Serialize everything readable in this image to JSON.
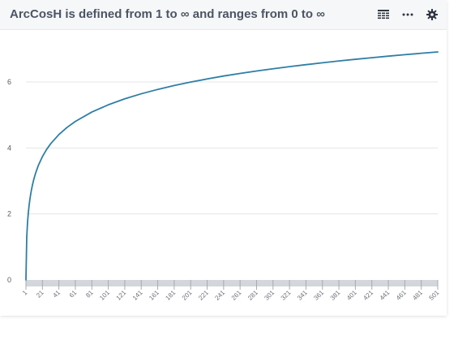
{
  "widget": {
    "title": "ArcCosH is defined from 1 to ∞ and ranges from 0 to ∞"
  },
  "toolbar": {
    "icons": [
      "table-icon",
      "more-icon",
      "gear-icon"
    ]
  },
  "colors": {
    "line": "#2f7ea5",
    "grid": "#e3e5e8",
    "axis_band": "#d3d6da",
    "title": "#4b5563",
    "header_bg": "#f6f7f9"
  },
  "chart_data": {
    "type": "line",
    "title": "",
    "xlabel": "",
    "ylabel": "",
    "grid": true,
    "x_ticks": [
      "1",
      "21",
      "41",
      "61",
      "81",
      "101",
      "121",
      "141",
      "161",
      "181",
      "201",
      "221",
      "241",
      "261",
      "281",
      "301",
      "321",
      "341",
      "361",
      "381",
      "401",
      "421",
      "441",
      "461",
      "481",
      "501"
    ],
    "y_ticks": [
      "0",
      "2",
      "4",
      "6"
    ],
    "xlim": [
      1,
      501
    ],
    "ylim": [
      0,
      7.5
    ],
    "series": [
      {
        "x": [
          1,
          2,
          3,
          4,
          5,
          6,
          7,
          8,
          9,
          10,
          11,
          13,
          16,
          21,
          26,
          31,
          41,
          51,
          61,
          81,
          101,
          121,
          141,
          161,
          181,
          201,
          221,
          241,
          261,
          281,
          301,
          321,
          341,
          361,
          381,
          401,
          421,
          441,
          461,
          481,
          501
        ],
        "values": [
          0.0,
          1.317,
          1.763,
          2.063,
          2.292,
          2.478,
          2.634,
          2.769,
          2.887,
          2.993,
          3.089,
          3.257,
          3.466,
          3.737,
          3.951,
          4.127,
          4.406,
          4.625,
          4.804,
          5.088,
          5.308,
          5.489,
          5.642,
          5.774,
          5.892,
          5.996,
          6.091,
          6.18,
          6.258,
          6.332,
          6.4,
          6.464,
          6.524,
          6.581,
          6.636,
          6.687,
          6.735,
          6.782,
          6.826,
          6.869,
          6.909
        ]
      }
    ]
  }
}
